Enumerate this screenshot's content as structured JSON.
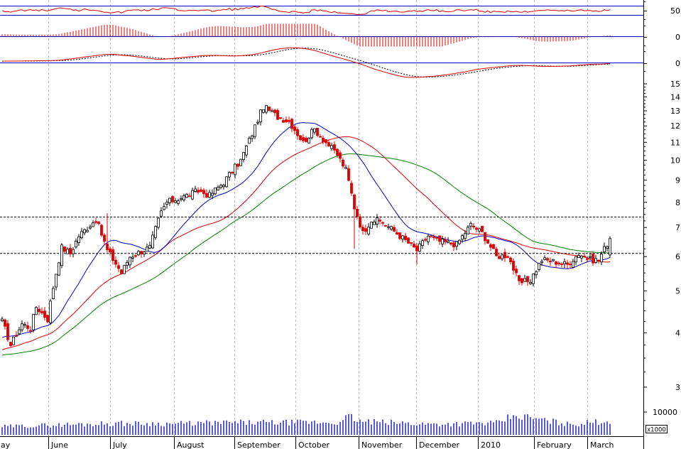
{
  "chart_data": {
    "type": "candlestick",
    "months": [
      "ay",
      "June",
      "July",
      "August",
      "September",
      "October",
      "November",
      "December",
      "2010",
      "February",
      "March"
    ],
    "price_axis": {
      "scale": "log",
      "ylim": [
        2.75,
        16.3
      ],
      "ticks": [
        15,
        14,
        13,
        12,
        11,
        10,
        9,
        8,
        7,
        6,
        5,
        4,
        3
      ]
    },
    "indicator_ticks": [
      "50",
      "0",
      "0"
    ],
    "volume_axis": {
      "label": "10000",
      "unit": "x1000"
    },
    "reference_levels": [
      7.4,
      6.1
    ],
    "ohlc_anchors": {
      "comment_free": true,
      "x": [
        0,
        3,
        7,
        10,
        12,
        16,
        21,
        24,
        27,
        33,
        37,
        42,
        45,
        52,
        56,
        58,
        63,
        69,
        73,
        78,
        84,
        88,
        92,
        97,
        101,
        106,
        110,
        114,
        118,
        121,
        124,
        127,
        130,
        134,
        140,
        146,
        150,
        154,
        160,
        165,
        169,
        174,
        178,
        182,
        186,
        190,
        194,
        199,
        203,
        207,
        210,
        214
      ],
      "close": [
        4.25,
        3.75,
        4.2,
        4.1,
        4.6,
        4.3,
        6.3,
        6.1,
        6.7,
        7.3,
        6.2,
        5.5,
        6.0,
        6.3,
        7.6,
        8.0,
        8.2,
        8.5,
        8.3,
        8.9,
        10.0,
        11.5,
        13.3,
        12.6,
        12.3,
        11.0,
        11.8,
        11.0,
        10.3,
        9.5,
        7.8,
        6.8,
        7.3,
        7.2,
        6.7,
        6.2,
        6.7,
        6.5,
        6.4,
        7.1,
        6.8,
        6.0,
        6.05,
        5.2,
        5.3,
        5.9,
        5.85,
        5.75,
        6.1,
        5.9,
        5.9,
        6.6
      ]
    },
    "volume_anchors": {
      "x": [
        0,
        20,
        40,
        60,
        80,
        95,
        120,
        121,
        122,
        126,
        150,
        175,
        180,
        200,
        214
      ],
      "values": [
        2200,
        2700,
        3100,
        3000,
        3300,
        3300,
        3400,
        5300,
        5000,
        3600,
        2900,
        3200,
        5300,
        2800,
        3800
      ]
    },
    "volume_max": 10000
  }
}
